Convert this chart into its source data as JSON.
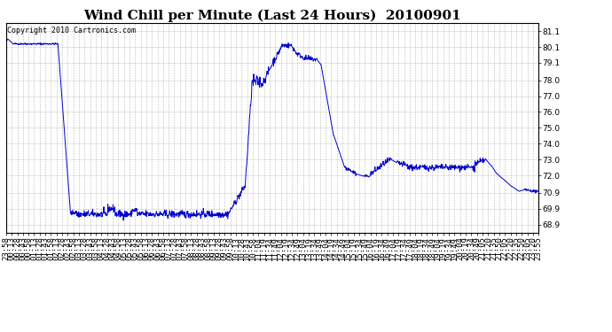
{
  "title": "Wind Chill per Minute (Last 24 Hours)  20100901",
  "copyright_text": "Copyright 2010 Cartronics.com",
  "line_color": "#0000cc",
  "background_color": "#ffffff",
  "grid_color": "#aaaaaa",
  "ylim": [
    68.4,
    81.6
  ],
  "yticks": [
    68.9,
    69.9,
    70.9,
    72.0,
    73.0,
    74.0,
    75.0,
    76.0,
    77.0,
    78.0,
    79.1,
    80.1,
    81.1
  ],
  "title_fontsize": 11,
  "tick_fontsize": 6.5,
  "copyright_fontsize": 6,
  "xtick_labels": [
    "23:58",
    "00:13",
    "00:28",
    "00:43",
    "00:58",
    "01:13",
    "01:28",
    "01:43",
    "01:58",
    "02:13",
    "02:28",
    "02:43",
    "02:58",
    "03:13",
    "03:28",
    "03:43",
    "03:58",
    "04:13",
    "04:28",
    "04:43",
    "04:58",
    "05:13",
    "05:28",
    "05:43",
    "05:58",
    "06:13",
    "06:28",
    "06:43",
    "06:58",
    "07:13",
    "07:28",
    "07:43",
    "07:58",
    "08:13",
    "08:28",
    "08:43",
    "08:58",
    "09:13",
    "09:28",
    "09:43",
    "09:58",
    "10:13",
    "10:28",
    "10:43",
    "10:58",
    "11:04",
    "11:19",
    "11:34",
    "11:49",
    "12:04",
    "12:19",
    "12:34",
    "12:49",
    "13:04",
    "13:19",
    "13:34",
    "13:49",
    "14:04",
    "14:19",
    "14:34",
    "14:49",
    "15:04",
    "15:19",
    "15:34",
    "15:49",
    "16:04",
    "16:19",
    "16:34",
    "16:49",
    "17:04",
    "17:19",
    "17:34",
    "17:49",
    "18:04",
    "18:19",
    "18:34",
    "18:49",
    "19:04",
    "19:19",
    "19:34",
    "19:49",
    "20:04",
    "20:19",
    "20:34",
    "20:49",
    "21:05",
    "21:20",
    "21:35",
    "21:50",
    "22:05",
    "22:20",
    "22:35",
    "22:50",
    "23:05",
    "23:20",
    "23:55"
  ]
}
